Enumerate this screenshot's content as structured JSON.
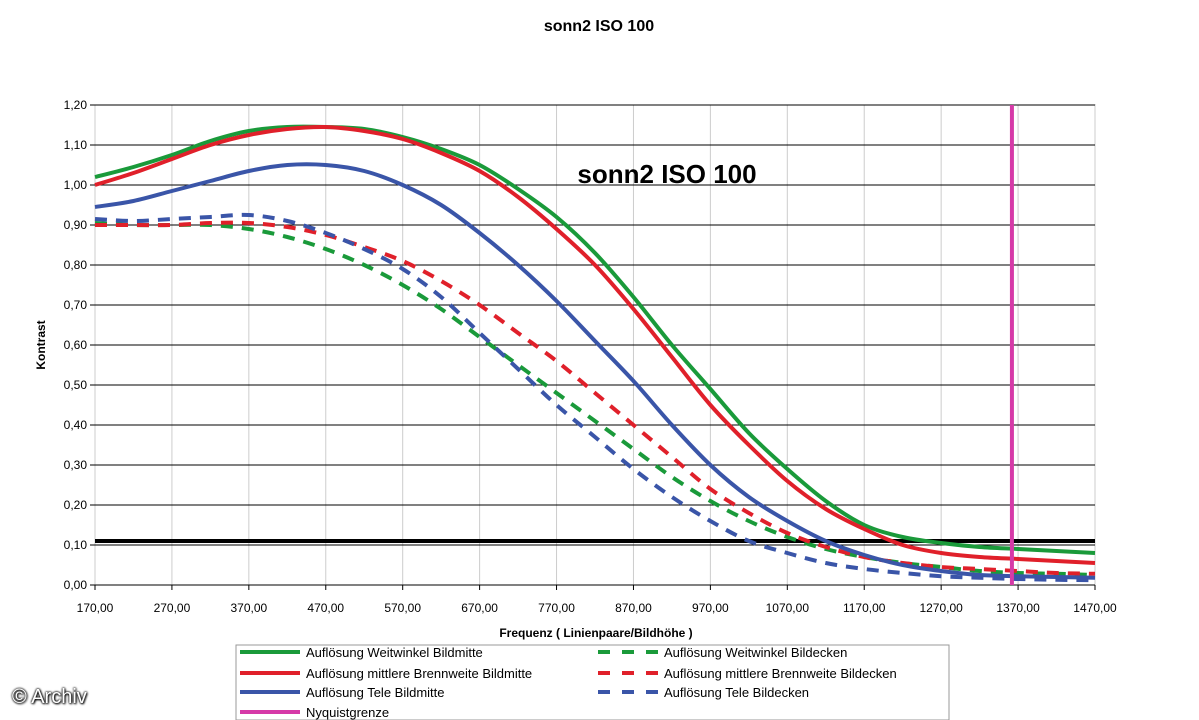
{
  "chart_data": {
    "type": "line",
    "title": "sonn2 ISO 100",
    "inner_title": "sonn2 ISO 100",
    "xlabel": "Frequenz ( Linienpaare/Bildhöhe )",
    "ylabel": "Kontrast",
    "xlim": [
      170,
      1470
    ],
    "ylim": [
      0,
      1.2
    ],
    "x_ticks": [
      "170,00",
      "270,00",
      "370,00",
      "470,00",
      "570,00",
      "670,00",
      "770,00",
      "870,00",
      "970,00",
      "1070,00",
      "1170,00",
      "1270,00",
      "1370,00",
      "1470,00"
    ],
    "y_ticks": [
      "0,00",
      "0,10",
      "0,20",
      "0,30",
      "0,40",
      "0,50",
      "0,60",
      "0,70",
      "0,80",
      "0,90",
      "1,00",
      "1,10",
      "1,20"
    ],
    "grid": "horizontal",
    "legend_position": "bottom",
    "threshold_value": 0.11,
    "nyquist_x": 1362,
    "series": [
      {
        "name": "Auflösung Weitwinkel Bildmitte",
        "color": "#1a9a3a",
        "dash": "solid",
        "x": [
          170,
          220,
          270,
          320,
          370,
          420,
          470,
          520,
          570,
          620,
          670,
          720,
          770,
          820,
          870,
          920,
          970,
          1020,
          1070,
          1120,
          1170,
          1220,
          1270,
          1320,
          1370,
          1420,
          1470
        ],
        "y": [
          1.02,
          1.045,
          1.075,
          1.11,
          1.135,
          1.145,
          1.145,
          1.14,
          1.12,
          1.09,
          1.05,
          0.99,
          0.92,
          0.83,
          0.72,
          0.6,
          0.49,
          0.38,
          0.29,
          0.21,
          0.15,
          0.12,
          0.105,
          0.095,
          0.09,
          0.085,
          0.08
        ]
      },
      {
        "name": "Auflösung mittlere Brennweite Bildmitte",
        "color": "#e0202a",
        "dash": "solid",
        "x": [
          170,
          220,
          270,
          320,
          370,
          420,
          470,
          520,
          570,
          620,
          670,
          720,
          770,
          820,
          870,
          920,
          970,
          1020,
          1070,
          1120,
          1170,
          1220,
          1270,
          1320,
          1370,
          1420,
          1470
        ],
        "y": [
          1.0,
          1.03,
          1.065,
          1.1,
          1.125,
          1.14,
          1.145,
          1.135,
          1.115,
          1.08,
          1.035,
          0.97,
          0.89,
          0.8,
          0.69,
          0.57,
          0.45,
          0.35,
          0.26,
          0.19,
          0.14,
          0.1,
          0.08,
          0.07,
          0.065,
          0.06,
          0.055
        ]
      },
      {
        "name": "Auflösung Tele Bildmitte",
        "color": "#3a55a8",
        "dash": "solid",
        "x": [
          170,
          220,
          270,
          320,
          370,
          420,
          470,
          520,
          570,
          620,
          670,
          720,
          770,
          820,
          870,
          920,
          970,
          1020,
          1070,
          1120,
          1170,
          1220,
          1270,
          1320,
          1370,
          1420,
          1470
        ],
        "y": [
          0.945,
          0.96,
          0.985,
          1.01,
          1.035,
          1.05,
          1.05,
          1.035,
          1.0,
          0.95,
          0.88,
          0.8,
          0.71,
          0.61,
          0.51,
          0.4,
          0.3,
          0.22,
          0.16,
          0.11,
          0.075,
          0.05,
          0.035,
          0.025,
          0.022,
          0.02,
          0.018
        ]
      },
      {
        "name": "Auflösung Weitwinkel Bildecken",
        "color": "#1a9a3a",
        "dash": "dashed",
        "x": [
          170,
          220,
          270,
          320,
          370,
          420,
          470,
          520,
          570,
          620,
          670,
          720,
          770,
          820,
          870,
          920,
          970,
          1020,
          1070,
          1120,
          1170,
          1220,
          1270,
          1320,
          1370,
          1420,
          1470
        ],
        "y": [
          0.905,
          0.9,
          0.9,
          0.9,
          0.89,
          0.87,
          0.84,
          0.8,
          0.75,
          0.69,
          0.62,
          0.55,
          0.48,
          0.41,
          0.34,
          0.27,
          0.21,
          0.16,
          0.12,
          0.09,
          0.07,
          0.055,
          0.045,
          0.035,
          0.03,
          0.028,
          0.025
        ]
      },
      {
        "name": "Auflösung mittlere Brennweite Bildecken",
        "color": "#e0202a",
        "dash": "dashed",
        "x": [
          170,
          220,
          270,
          320,
          370,
          420,
          470,
          520,
          570,
          620,
          670,
          720,
          770,
          820,
          870,
          920,
          970,
          1020,
          1070,
          1120,
          1170,
          1220,
          1270,
          1320,
          1370,
          1420,
          1470
        ],
        "y": [
          0.9,
          0.9,
          0.9,
          0.905,
          0.905,
          0.895,
          0.875,
          0.845,
          0.81,
          0.76,
          0.7,
          0.63,
          0.56,
          0.48,
          0.4,
          0.32,
          0.24,
          0.18,
          0.13,
          0.095,
          0.07,
          0.055,
          0.045,
          0.04,
          0.035,
          0.03,
          0.028
        ]
      },
      {
        "name": "Auflösung Tele Bildecken",
        "color": "#3a55a8",
        "dash": "dashed",
        "x": [
          170,
          220,
          270,
          320,
          370,
          420,
          470,
          520,
          570,
          620,
          670,
          720,
          770,
          820,
          870,
          920,
          970,
          1020,
          1070,
          1120,
          1170,
          1220,
          1270,
          1320,
          1370,
          1420,
          1470
        ],
        "y": [
          0.915,
          0.91,
          0.915,
          0.92,
          0.925,
          0.91,
          0.88,
          0.84,
          0.79,
          0.72,
          0.63,
          0.54,
          0.45,
          0.37,
          0.29,
          0.22,
          0.16,
          0.11,
          0.08,
          0.055,
          0.04,
          0.03,
          0.022,
          0.018,
          0.015,
          0.013,
          0.012
        ]
      }
    ],
    "nyquist_series": {
      "name": "Nyquistgrenze",
      "color": "#d63aa8"
    }
  },
  "copyright": "© Archiv"
}
